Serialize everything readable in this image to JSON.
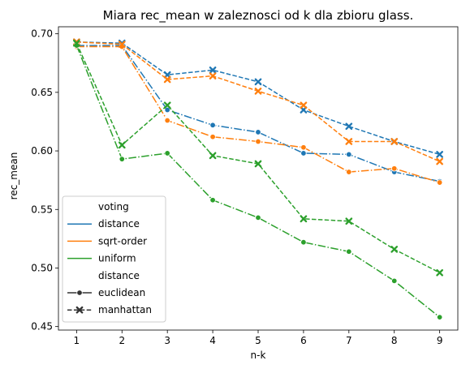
{
  "chart_data": {
    "type": "line",
    "title": "Miara rec_mean w zaleznosci od k dla zbioru glass.",
    "xlabel": "n-k",
    "ylabel": "rec_mean",
    "x": [
      1,
      2,
      3,
      4,
      5,
      6,
      7,
      8,
      9
    ],
    "xlim": [
      0.6,
      9.4
    ],
    "ylim": [
      0.447,
      0.706
    ],
    "x_ticks": [
      "1",
      "2",
      "3",
      "4",
      "5",
      "6",
      "7",
      "8",
      "9"
    ],
    "y_ticks": [
      0.45,
      0.5,
      0.55,
      0.6,
      0.65,
      0.7
    ],
    "y_tick_labels": [
      "0.45",
      "0.50",
      "0.55",
      "0.60",
      "0.65",
      "0.70"
    ],
    "grid": false,
    "legend": {
      "placement": "lower-left",
      "hue_title": "voting",
      "style_title": "distance",
      "hue_entries": [
        {
          "label": "distance",
          "color": "#1f77b4"
        },
        {
          "label": "sqrt-order",
          "color": "#ff7f0e"
        },
        {
          "label": "uniform",
          "color": "#2ca02c"
        }
      ],
      "style_entries": [
        {
          "label": "euclidean",
          "marker": "circle",
          "dash": "solid"
        },
        {
          "label": "manhattan",
          "marker": "x",
          "dash": "dashed"
        }
      ]
    },
    "series": [
      {
        "voting": "distance",
        "distance": "euclidean",
        "color": "#1f77b4",
        "marker": "circle",
        "line": "dashdot",
        "values": [
          0.69,
          0.69,
          0.635,
          0.622,
          0.616,
          0.598,
          0.597,
          0.582,
          0.574
        ]
      },
      {
        "voting": "distance",
        "distance": "manhattan",
        "color": "#1f77b4",
        "marker": "x",
        "line": "dashed",
        "values": [
          0.693,
          0.692,
          0.665,
          0.669,
          0.659,
          0.635,
          0.621,
          0.608,
          0.597
        ]
      },
      {
        "voting": "sqrt-order",
        "distance": "euclidean",
        "color": "#ff7f0e",
        "marker": "circle",
        "line": "dashdot",
        "values": [
          0.689,
          0.689,
          0.626,
          0.612,
          0.608,
          0.603,
          0.582,
          0.585,
          0.573
        ]
      },
      {
        "voting": "sqrt-order",
        "distance": "manhattan",
        "color": "#ff7f0e",
        "marker": "x",
        "line": "dashed",
        "values": [
          0.693,
          0.691,
          0.661,
          0.664,
          0.651,
          0.639,
          0.608,
          0.608,
          0.591
        ]
      },
      {
        "voting": "uniform",
        "distance": "euclidean",
        "color": "#2ca02c",
        "marker": "circle",
        "line": "dashdot",
        "values": [
          0.69,
          0.593,
          0.598,
          0.558,
          0.543,
          0.522,
          0.514,
          0.489,
          0.458
        ]
      },
      {
        "voting": "uniform",
        "distance": "manhattan",
        "color": "#2ca02c",
        "marker": "x",
        "line": "dashed",
        "values": [
          0.692,
          0.605,
          0.639,
          0.596,
          0.589,
          0.542,
          0.54,
          0.516,
          0.496
        ]
      }
    ]
  }
}
